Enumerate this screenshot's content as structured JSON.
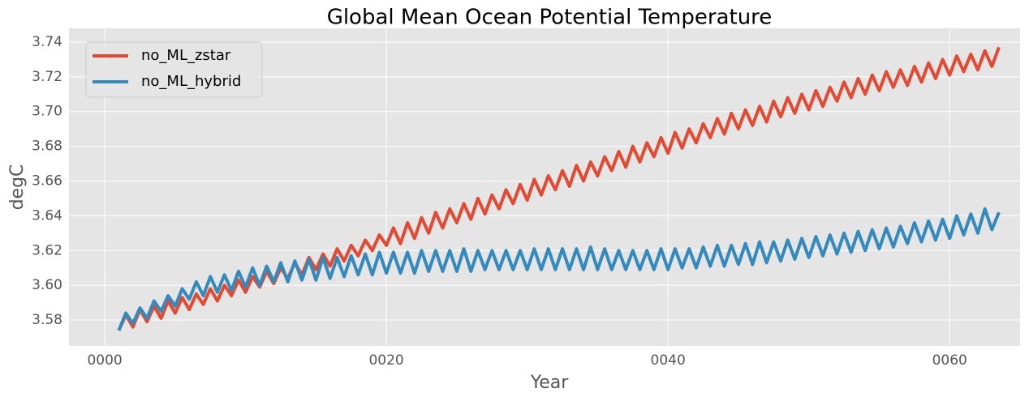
{
  "chart_data": {
    "type": "line",
    "title": "Global Mean Ocean Potential Temperature",
    "xlabel": "Year",
    "ylabel": "degC",
    "x": [
      1,
      1.5,
      2,
      2.5,
      3,
      3.5,
      4,
      4.5,
      5,
      5.5,
      6,
      6.5,
      7,
      7.5,
      8,
      8.5,
      9,
      9.5,
      10,
      10.5,
      11,
      11.5,
      12,
      12.5,
      13,
      13.5,
      14,
      14.5,
      15,
      15.5,
      16,
      16.5,
      17,
      17.5,
      18,
      18.5,
      19,
      19.5,
      20,
      20.5,
      21,
      21.5,
      22,
      22.5,
      23,
      23.5,
      24,
      24.5,
      25,
      25.5,
      26,
      26.5,
      27,
      27.5,
      28,
      28.5,
      29,
      29.5,
      30,
      30.5,
      31,
      31.5,
      32,
      32.5,
      33,
      33.5,
      34,
      34.5,
      35,
      35.5,
      36,
      36.5,
      37,
      37.5,
      38,
      38.5,
      39,
      39.5,
      40,
      40.5,
      41,
      41.5,
      42,
      42.5,
      43,
      43.5,
      44,
      44.5,
      45,
      45.5,
      46,
      46.5,
      47,
      47.5,
      48,
      48.5,
      49,
      49.5,
      50,
      50.5,
      51,
      51.5,
      52,
      52.5,
      53,
      53.5,
      54,
      54.5,
      55,
      55.5,
      56,
      56.5,
      57,
      57.5,
      58,
      58.5,
      59,
      59.5,
      60,
      60.5,
      61,
      61.5,
      62,
      62.5,
      63,
      63.5
    ],
    "series": [
      {
        "name": "no_ML_zstar",
        "color": "#E24A33",
        "values": [
          3.574,
          3.583,
          3.576,
          3.586,
          3.579,
          3.588,
          3.581,
          3.591,
          3.584,
          3.593,
          3.586,
          3.595,
          3.589,
          3.598,
          3.591,
          3.6,
          3.594,
          3.603,
          3.596,
          3.605,
          3.599,
          3.608,
          3.601,
          3.61,
          3.604,
          3.613,
          3.606,
          3.616,
          3.609,
          3.618,
          3.611,
          3.621,
          3.614,
          3.623,
          3.617,
          3.626,
          3.62,
          3.629,
          3.623,
          3.633,
          3.624,
          3.636,
          3.627,
          3.639,
          3.63,
          3.642,
          3.633,
          3.644,
          3.636,
          3.647,
          3.638,
          3.65,
          3.641,
          3.652,
          3.644,
          3.655,
          3.647,
          3.658,
          3.649,
          3.661,
          3.652,
          3.663,
          3.655,
          3.666,
          3.657,
          3.669,
          3.66,
          3.671,
          3.663,
          3.674,
          3.666,
          3.677,
          3.668,
          3.68,
          3.671,
          3.682,
          3.674,
          3.685,
          3.676,
          3.688,
          3.679,
          3.69,
          3.682,
          3.693,
          3.685,
          3.696,
          3.687,
          3.699,
          3.69,
          3.701,
          3.692,
          3.703,
          3.694,
          3.706,
          3.697,
          3.708,
          3.699,
          3.71,
          3.701,
          3.712,
          3.703,
          3.714,
          3.706,
          3.717,
          3.708,
          3.719,
          3.71,
          3.721,
          3.712,
          3.723,
          3.714,
          3.724,
          3.715,
          3.726,
          3.717,
          3.728,
          3.719,
          3.73,
          3.721,
          3.732,
          3.723,
          3.733,
          3.724,
          3.735,
          3.726,
          3.737
        ]
      },
      {
        "name": "no_ML_hybrid",
        "color": "#348ABD",
        "values": [
          3.574,
          3.584,
          3.578,
          3.587,
          3.581,
          3.591,
          3.585,
          3.594,
          3.588,
          3.598,
          3.592,
          3.602,
          3.594,
          3.605,
          3.596,
          3.606,
          3.597,
          3.608,
          3.599,
          3.61,
          3.6,
          3.611,
          3.602,
          3.613,
          3.602,
          3.614,
          3.603,
          3.615,
          3.603,
          3.616,
          3.604,
          3.616,
          3.605,
          3.617,
          3.606,
          3.618,
          3.606,
          3.619,
          3.607,
          3.619,
          3.607,
          3.619,
          3.607,
          3.62,
          3.608,
          3.62,
          3.608,
          3.62,
          3.608,
          3.621,
          3.608,
          3.62,
          3.609,
          3.62,
          3.609,
          3.62,
          3.609,
          3.62,
          3.609,
          3.621,
          3.609,
          3.621,
          3.609,
          3.621,
          3.609,
          3.621,
          3.609,
          3.622,
          3.609,
          3.621,
          3.609,
          3.62,
          3.609,
          3.62,
          3.609,
          3.62,
          3.609,
          3.621,
          3.609,
          3.621,
          3.61,
          3.621,
          3.61,
          3.622,
          3.611,
          3.623,
          3.611,
          3.623,
          3.612,
          3.624,
          3.612,
          3.625,
          3.613,
          3.625,
          3.614,
          3.626,
          3.615,
          3.627,
          3.616,
          3.628,
          3.617,
          3.629,
          3.618,
          3.63,
          3.619,
          3.631,
          3.62,
          3.632,
          3.621,
          3.633,
          3.622,
          3.634,
          3.624,
          3.636,
          3.625,
          3.637,
          3.626,
          3.638,
          3.627,
          3.64,
          3.629,
          3.641,
          3.63,
          3.644,
          3.632,
          3.642
        ]
      }
    ],
    "xlim": [
      -2.54,
      65.0
    ],
    "xticks": [
      {
        "value": 0,
        "label": "0000"
      },
      {
        "value": 20,
        "label": "0020"
      },
      {
        "value": 40,
        "label": "0040"
      },
      {
        "value": 60,
        "label": "0060"
      }
    ],
    "ylim": [
      3.5651,
      3.7479
    ],
    "yticks": [
      3.58,
      {
        "value": 3.6,
        "label": "3.60"
      },
      3.62,
      3.64,
      3.66,
      3.68,
      {
        "value": 3.7,
        "label": "3.70"
      },
      3.72,
      3.74
    ],
    "grid": true,
    "legend": "upper left"
  }
}
